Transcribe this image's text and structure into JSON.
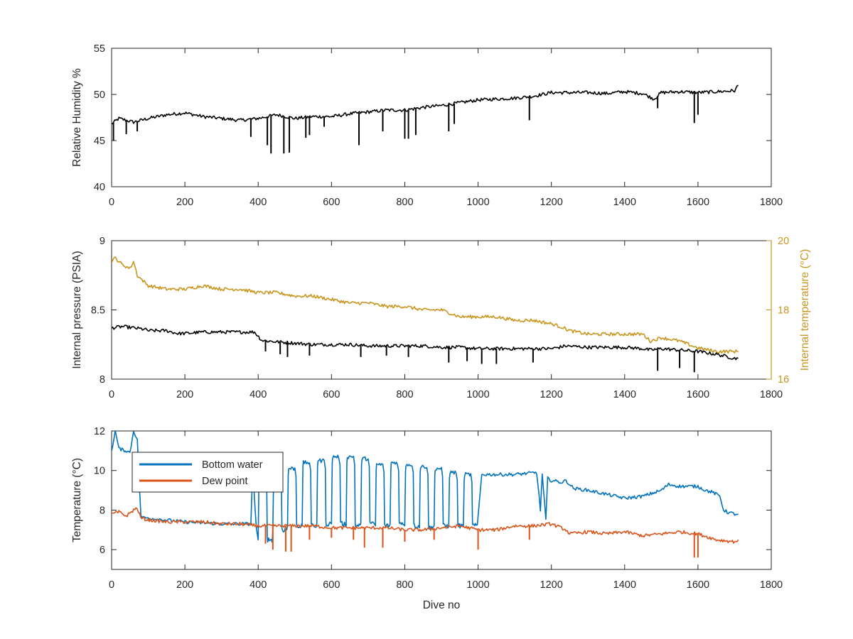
{
  "chart_data": [
    {
      "type": "line",
      "ylabel": "Relative Humidity %",
      "xlim": [
        0,
        1800
      ],
      "ylim": [
        40,
        55
      ],
      "xticks": [
        0,
        200,
        400,
        600,
        800,
        1000,
        1200,
        1400,
        1600,
        1800
      ],
      "yticks": [
        40,
        45,
        50,
        55
      ],
      "grid": false,
      "series": [
        {
          "color": "#000000",
          "x": [
            0,
            20,
            60,
            100,
            150,
            200,
            250,
            300,
            350,
            400,
            450,
            500,
            550,
            600,
            650,
            700,
            750,
            800,
            850,
            900,
            950,
            1000,
            1050,
            1100,
            1150,
            1200,
            1250,
            1300,
            1350,
            1400,
            1450,
            1480,
            1500,
            1550,
            1600,
            1650,
            1700,
            1710
          ],
          "y": [
            46.8,
            47.4,
            47.0,
            47.4,
            47.8,
            48.0,
            47.6,
            47.4,
            47.2,
            47.4,
            47.8,
            47.4,
            47.6,
            47.6,
            47.9,
            48.1,
            48.3,
            48.3,
            48.6,
            48.8,
            49.1,
            49.4,
            49.5,
            49.6,
            49.8,
            50.2,
            50.2,
            50.2,
            50.1,
            50.3,
            50.1,
            49.5,
            50.2,
            50.3,
            50.2,
            50.3,
            50.4,
            51.0
          ],
          "dips": [
            {
              "x": 5,
              "y": 45.0
            },
            {
              "x": 40,
              "y": 45.7
            },
            {
              "x": 70,
              "y": 46.0
            },
            {
              "x": 380,
              "y": 45.4
            },
            {
              "x": 425,
              "y": 44.5
            },
            {
              "x": 435,
              "y": 43.6
            },
            {
              "x": 470,
              "y": 43.6
            },
            {
              "x": 485,
              "y": 43.7
            },
            {
              "x": 530,
              "y": 45.3
            },
            {
              "x": 540,
              "y": 45.6
            },
            {
              "x": 580,
              "y": 46.5
            },
            {
              "x": 675,
              "y": 44.5
            },
            {
              "x": 740,
              "y": 46.0
            },
            {
              "x": 800,
              "y": 45.2
            },
            {
              "x": 810,
              "y": 45.2
            },
            {
              "x": 830,
              "y": 45.6
            },
            {
              "x": 920,
              "y": 46.0
            },
            {
              "x": 935,
              "y": 46.8
            },
            {
              "x": 1140,
              "y": 47.2
            },
            {
              "x": 1490,
              "y": 48.5
            },
            {
              "x": 1590,
              "y": 46.9
            },
            {
              "x": 1600,
              "y": 47.8
            }
          ]
        }
      ]
    },
    {
      "type": "line",
      "ylabel": "Internal pressure (PSIA)",
      "y2label": "Internal temperature (°C)",
      "xlim": [
        0,
        1800
      ],
      "ylim": [
        8,
        9
      ],
      "y2lim": [
        16,
        20
      ],
      "xticks": [
        0,
        200,
        400,
        600,
        800,
        1000,
        1200,
        1400,
        1600,
        1800
      ],
      "yticks": [
        8,
        8.5,
        9
      ],
      "ytick_labels": [
        "8",
        "8.5",
        "9"
      ],
      "y2ticks": [
        16,
        18,
        20
      ],
      "y2_color": "#C8961E",
      "grid": false,
      "series": [
        {
          "axis": "left",
          "color": "#000000",
          "x": [
            0,
            30,
            60,
            90,
            100,
            150,
            180,
            200,
            250,
            300,
            350,
            390,
            410,
            450,
            500,
            550,
            600,
            650,
            700,
            750,
            800,
            850,
            900,
            950,
            1000,
            1050,
            1100,
            1150,
            1200,
            1240,
            1300,
            1350,
            1400,
            1450,
            1470,
            1500,
            1550,
            1600,
            1650,
            1700,
            1710
          ],
          "y": [
            8.37,
            8.38,
            8.37,
            8.36,
            8.35,
            8.35,
            8.33,
            8.33,
            8.34,
            8.34,
            8.34,
            8.34,
            8.28,
            8.27,
            8.26,
            8.25,
            8.25,
            8.25,
            8.24,
            8.24,
            8.24,
            8.24,
            8.23,
            8.23,
            8.22,
            8.22,
            8.22,
            8.22,
            8.22,
            8.24,
            8.23,
            8.23,
            8.23,
            8.22,
            8.21,
            8.22,
            8.21,
            8.2,
            8.18,
            8.15,
            8.15
          ],
          "dips": [
            {
              "x": 420,
              "y": 8.2
            },
            {
              "x": 460,
              "y": 8.18
            },
            {
              "x": 480,
              "y": 8.16
            },
            {
              "x": 540,
              "y": 8.17
            },
            {
              "x": 680,
              "y": 8.16
            },
            {
              "x": 750,
              "y": 8.17
            },
            {
              "x": 810,
              "y": 8.16
            },
            {
              "x": 920,
              "y": 8.12
            },
            {
              "x": 970,
              "y": 8.13
            },
            {
              "x": 1010,
              "y": 8.11
            },
            {
              "x": 1050,
              "y": 8.11
            },
            {
              "x": 1150,
              "y": 8.12
            },
            {
              "x": 1490,
              "y": 8.06
            },
            {
              "x": 1550,
              "y": 8.08
            },
            {
              "x": 1590,
              "y": 8.05
            }
          ]
        },
        {
          "axis": "right",
          "color": "#C8961E",
          "x": [
            0,
            10,
            30,
            50,
            60,
            70,
            80,
            100,
            150,
            200,
            250,
            300,
            350,
            400,
            450,
            500,
            550,
            600,
            650,
            700,
            750,
            800,
            850,
            900,
            950,
            1000,
            1050,
            1100,
            1150,
            1200,
            1230,
            1250,
            1300,
            1350,
            1400,
            1450,
            1470,
            1500,
            1550,
            1600,
            1650,
            1700,
            1710
          ],
          "y": [
            19.4,
            19.5,
            19.3,
            19.2,
            19.4,
            19.0,
            18.9,
            18.7,
            18.6,
            18.6,
            18.7,
            18.6,
            18.6,
            18.5,
            18.5,
            18.4,
            18.4,
            18.3,
            18.2,
            18.2,
            18.1,
            18.1,
            18.0,
            18.0,
            17.8,
            17.8,
            17.8,
            17.7,
            17.7,
            17.6,
            17.5,
            17.4,
            17.3,
            17.3,
            17.3,
            17.3,
            17.1,
            17.2,
            17.1,
            16.9,
            16.8,
            16.8,
            16.8
          ],
          "dips": []
        }
      ]
    },
    {
      "type": "line",
      "xlabel": "Dive no",
      "ylabel": "Temperature (°C)",
      "xlim": [
        0,
        1800
      ],
      "ylim": [
        5,
        12
      ],
      "xticks": [
        0,
        200,
        400,
        600,
        800,
        1000,
        1200,
        1400,
        1600,
        1800
      ],
      "yticks": [
        6,
        8,
        10,
        12
      ],
      "legend_position": "top-left",
      "grid": false,
      "series": [
        {
          "name": "Bottom water",
          "color": "#0072BD",
          "x": [
            0,
            10,
            20,
            40,
            50,
            60,
            70,
            80,
            90,
            100,
            200,
            300,
            380,
            385,
            395,
            420,
            425,
            435,
            460,
            500,
            1010,
            1100,
            1160,
            1170,
            1175,
            1185,
            1190,
            1200,
            1230,
            1240,
            1250,
            1260,
            1300,
            1350,
            1400,
            1450,
            1500,
            1520,
            1550,
            1600,
            1620,
            1640,
            1660,
            1670,
            1680,
            1700,
            1710
          ],
          "y": [
            11.0,
            12.0,
            11.1,
            11.0,
            10.9,
            12.0,
            11.6,
            7.7,
            7.6,
            7.6,
            7.4,
            7.3,
            7.3,
            10.0,
            7.1,
            9.8,
            10.0,
            9.9,
            9.9,
            10.0,
            9.8,
            9.8,
            9.9,
            8.0,
            9.8,
            7.5,
            9.6,
            9.5,
            9.4,
            9.5,
            9.3,
            9.1,
            9.0,
            8.8,
            8.6,
            8.7,
            9.0,
            9.3,
            9.2,
            9.2,
            9.0,
            8.9,
            8.7,
            8.0,
            7.9,
            7.8,
            7.8
          ],
          "square_wave": {
            "x_start": 400,
            "x_end": 1000,
            "cycles": 15,
            "high": [
              9.9,
              10.0,
              10.2,
              10.5,
              10.6,
              10.8,
              10.8,
              10.7,
              10.4,
              10.5,
              10.4,
              10.3,
              10.2,
              10.0,
              9.9
            ],
            "low": [
              6.5,
              7.0,
              7.2,
              7.2,
              7.3,
              7.3,
              7.2,
              7.3,
              7.2,
              7.3,
              7.2,
              7.1,
              7.2,
              7.2,
              7.2
            ]
          }
        },
        {
          "name": "Dew point",
          "color": "#D95319",
          "x": [
            0,
            20,
            40,
            60,
            70,
            80,
            100,
            150,
            200,
            250,
            300,
            350,
            400,
            450,
            500,
            550,
            600,
            650,
            700,
            750,
            800,
            850,
            900,
            950,
            1000,
            1050,
            1100,
            1150,
            1200,
            1240,
            1250,
            1300,
            1350,
            1400,
            1450,
            1500,
            1550,
            1600,
            1650,
            1700,
            1710
          ],
          "y": [
            7.8,
            7.9,
            7.7,
            8.0,
            8.1,
            7.6,
            7.5,
            7.4,
            7.4,
            7.4,
            7.3,
            7.3,
            7.2,
            7.2,
            7.2,
            7.2,
            7.1,
            7.1,
            7.1,
            7.1,
            7.0,
            7.0,
            7.1,
            7.2,
            7.0,
            7.0,
            7.2,
            7.2,
            7.3,
            7.0,
            6.8,
            6.9,
            6.8,
            6.9,
            6.7,
            6.8,
            6.9,
            6.8,
            6.5,
            6.4,
            6.5
          ],
          "dips": [
            {
              "x": 420,
              "y": 6.3
            },
            {
              "x": 440,
              "y": 6.0
            },
            {
              "x": 475,
              "y": 5.9
            },
            {
              "x": 490,
              "y": 5.9
            },
            {
              "x": 540,
              "y": 6.5
            },
            {
              "x": 600,
              "y": 6.6
            },
            {
              "x": 660,
              "y": 6.5
            },
            {
              "x": 690,
              "y": 6.1
            },
            {
              "x": 740,
              "y": 6.1
            },
            {
              "x": 800,
              "y": 6.4
            },
            {
              "x": 880,
              "y": 6.5
            },
            {
              "x": 1000,
              "y": 6.0
            },
            {
              "x": 1140,
              "y": 6.5
            },
            {
              "x": 1590,
              "y": 5.6
            },
            {
              "x": 1600,
              "y": 5.6
            }
          ]
        }
      ]
    }
  ]
}
